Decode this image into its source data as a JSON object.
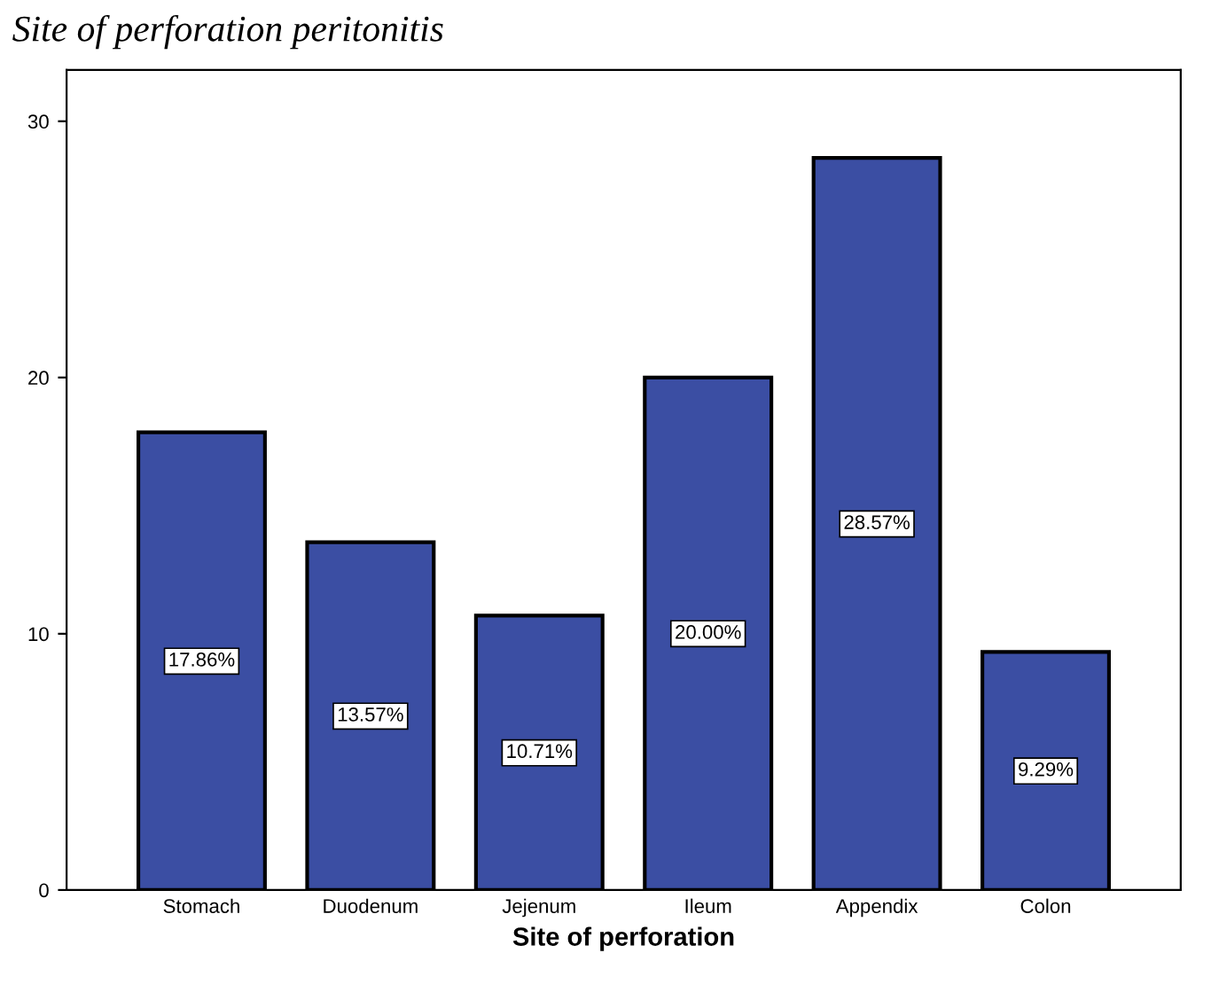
{
  "chart_data": {
    "type": "bar",
    "title": "Site of perforation peritonitis",
    "xlabel": "Site of perforation",
    "categories": [
      "Stomach",
      "Duodenum",
      "Jejenum",
      "Ileum",
      "Appendix",
      "Colon"
    ],
    "values": [
      17.86,
      13.57,
      10.71,
      20.0,
      28.57,
      9.29
    ],
    "value_labels": [
      "17.86%",
      "13.57%",
      "10.71%",
      "20.00%",
      "28.57%",
      "9.29%"
    ],
    "color": "#3b4ea3",
    "ylim": [
      0,
      32
    ],
    "yticks": [
      0,
      10,
      20,
      30
    ],
    "grid": false,
    "legend": false
  }
}
